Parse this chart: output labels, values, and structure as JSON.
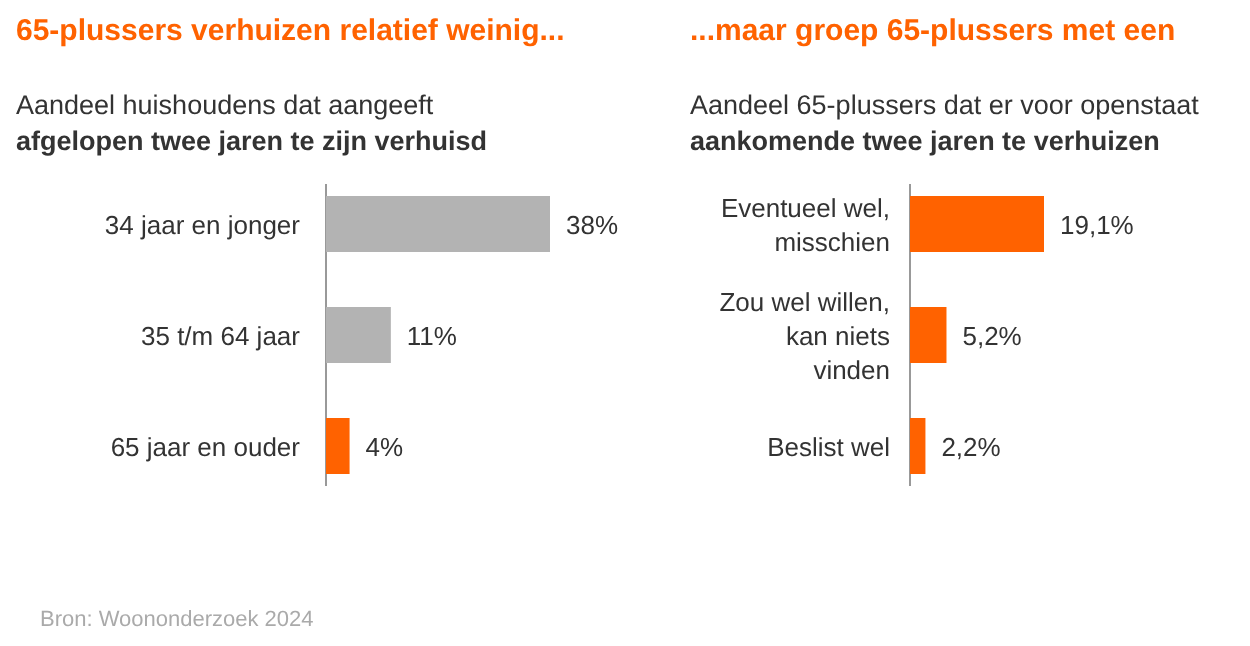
{
  "chart_data": [
    {
      "type": "bar",
      "orientation": "horizontal",
      "title": "65-plussers verhuizen relatief weinig...",
      "subtitle": "Aandeel huishoudens dat aangeeft\nafgelopen twee jaren te zijn verhuisd",
      "categories": [
        "34 jaar en jonger",
        "35 t/m 64 jaar",
        "65 jaar en ouder"
      ],
      "values": [
        38,
        11,
        4
      ],
      "colors": [
        "#b3b3b3",
        "#b3b3b3",
        "#ff6200"
      ],
      "value_labels": [
        "38%",
        "11%",
        "4%"
      ],
      "annotations": [
        "Bron: Woononderzoek 2024"
      ]
    },
    {
      "type": "bar",
      "orientation": "horizontal",
      "title": "...maar groep 65-plussers met een",
      "subtitle": "Aandeel 65-plussers dat er voor openstaat\naankomende twee jaren te verhuizen",
      "categories": [
        "Eventueel wel,\nmisschien",
        "Zou wel willen,\nkan niets\nvinden",
        "Beslist wel"
      ],
      "values": [
        19.1,
        5.2,
        2.2
      ],
      "colors": [
        "#ff6200",
        "#ff6200",
        "#ff6200"
      ],
      "value_labels": [
        "19,1%",
        "5,2%",
        "2,2%"
      ]
    }
  ]
}
